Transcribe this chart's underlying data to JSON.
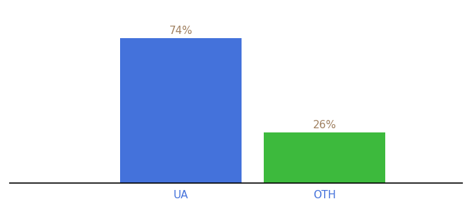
{
  "categories": [
    "UA",
    "OTH"
  ],
  "values": [
    74,
    26
  ],
  "bar_colors": [
    "#4472db",
    "#3dba3d"
  ],
  "label_color": "#a08060",
  "label_fontsize": 11,
  "tick_label_color": "#4472db",
  "tick_fontsize": 11,
  "background_color": "#ffffff",
  "ylim": [
    0,
    85
  ],
  "bar_width": 0.55,
  "x_positions": [
    0.35,
    1.0
  ]
}
